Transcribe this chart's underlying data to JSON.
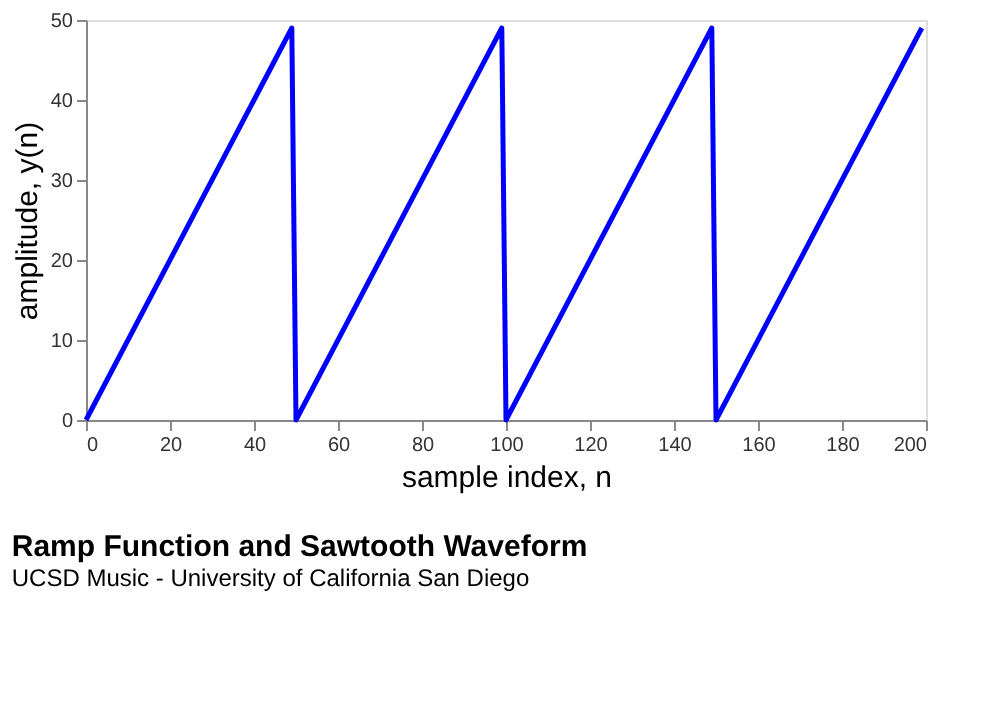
{
  "chart_data": {
    "type": "line",
    "title": "Ramp Function and Sawtooth Waveform",
    "subtitle": "UCSD Music - University of California San Diego",
    "xlabel": "sample index, n",
    "ylabel": "amplitude, y(n)",
    "series": [
      {
        "color": "#0000ff",
        "x": [
          0,
          49,
          50,
          99,
          100,
          149,
          150,
          199
        ],
        "values": [
          0,
          49,
          0,
          49,
          0,
          49,
          0,
          49
        ]
      }
    ],
    "xlim": [
      0,
      200
    ],
    "xticks": [
      0,
      20,
      40,
      60,
      80,
      100,
      120,
      140,
      160,
      180,
      200
    ],
    "ylim": [
      0,
      50
    ],
    "yticks": [
      0,
      10,
      20,
      30,
      40,
      50
    ],
    "grid": false,
    "legend": false,
    "marker": "none",
    "line_style": "solid"
  }
}
